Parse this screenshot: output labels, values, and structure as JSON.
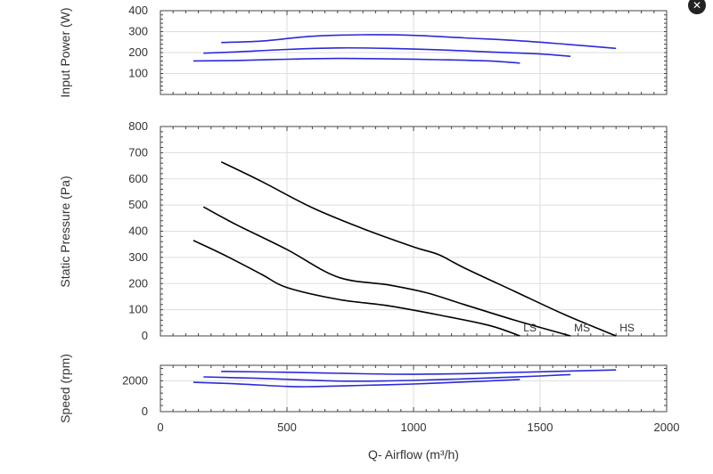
{
  "close_icon": "✕",
  "chart_data": [
    {
      "type": "line",
      "ylabel": "Input Power (W)",
      "xlim": [
        0,
        2000
      ],
      "ylim": [
        0,
        400
      ],
      "yticks": [
        100,
        200,
        300,
        400
      ],
      "grid": true,
      "series": [
        {
          "color": "#2b2bd6",
          "x": [
            240,
            400,
            600,
            800,
            1000,
            1200,
            1400,
            1600,
            1800
          ],
          "y": [
            248,
            255,
            278,
            285,
            282,
            270,
            258,
            240,
            220
          ]
        },
        {
          "color": "#2b2bd6",
          "x": [
            170,
            300,
            500,
            700,
            900,
            1100,
            1300,
            1500,
            1620
          ],
          "y": [
            197,
            203,
            215,
            222,
            220,
            213,
            203,
            193,
            182
          ]
        },
        {
          "color": "#2b2bd6",
          "x": [
            130,
            300,
            500,
            700,
            900,
            1100,
            1300,
            1420
          ],
          "y": [
            160,
            162,
            168,
            172,
            170,
            166,
            160,
            150
          ]
        }
      ]
    },
    {
      "type": "line",
      "ylabel": "Static Pressure (Pa)",
      "xlim": [
        0,
        2000
      ],
      "ylim": [
        0,
        800
      ],
      "yticks": [
        0,
        100,
        200,
        300,
        400,
        500,
        600,
        700,
        800
      ],
      "grid": true,
      "series": [
        {
          "name": "HS",
          "color": "#000000",
          "x": [
            240,
            400,
            600,
            800,
            1000,
            1100,
            1200,
            1400,
            1600,
            1800
          ],
          "y": [
            665,
            590,
            490,
            410,
            340,
            310,
            260,
            170,
            80,
            0
          ]
        },
        {
          "name": "MS",
          "color": "#000000",
          "x": [
            170,
            300,
            500,
            700,
            900,
            1050,
            1200,
            1400,
            1620
          ],
          "y": [
            493,
            425,
            330,
            225,
            195,
            165,
            120,
            60,
            0
          ]
        },
        {
          "name": "LS",
          "color": "#000000",
          "x": [
            130,
            250,
            400,
            500,
            700,
            900,
            1100,
            1300,
            1420
          ],
          "y": [
            365,
            310,
            235,
            185,
            140,
            115,
            80,
            40,
            0
          ]
        }
      ]
    },
    {
      "type": "line",
      "ylabel": "Speed (rpm)",
      "xlabel": "Q- Airflow (m³/h)",
      "xlim": [
        0,
        2000
      ],
      "ylim": [
        0,
        3000
      ],
      "yticks": [
        0,
        2000
      ],
      "xticks": [
        0,
        500,
        1000,
        1500,
        2000
      ],
      "grid": true,
      "series": [
        {
          "color": "#2b2bd6",
          "x": [
            240,
            500,
            800,
            1000,
            1200,
            1400,
            1600,
            1800
          ],
          "y": [
            2600,
            2550,
            2450,
            2420,
            2460,
            2540,
            2620,
            2700
          ]
        },
        {
          "color": "#2b2bd6",
          "x": [
            170,
            400,
            700,
            900,
            1100,
            1300,
            1500,
            1620
          ],
          "y": [
            2250,
            2150,
            1980,
            1990,
            2070,
            2180,
            2310,
            2400
          ]
        },
        {
          "color": "#2b2bd6",
          "x": [
            130,
            300,
            500,
            600,
            800,
            1000,
            1200,
            1420
          ],
          "y": [
            1900,
            1800,
            1630,
            1620,
            1700,
            1790,
            1920,
            2080
          ]
        }
      ]
    }
  ]
}
